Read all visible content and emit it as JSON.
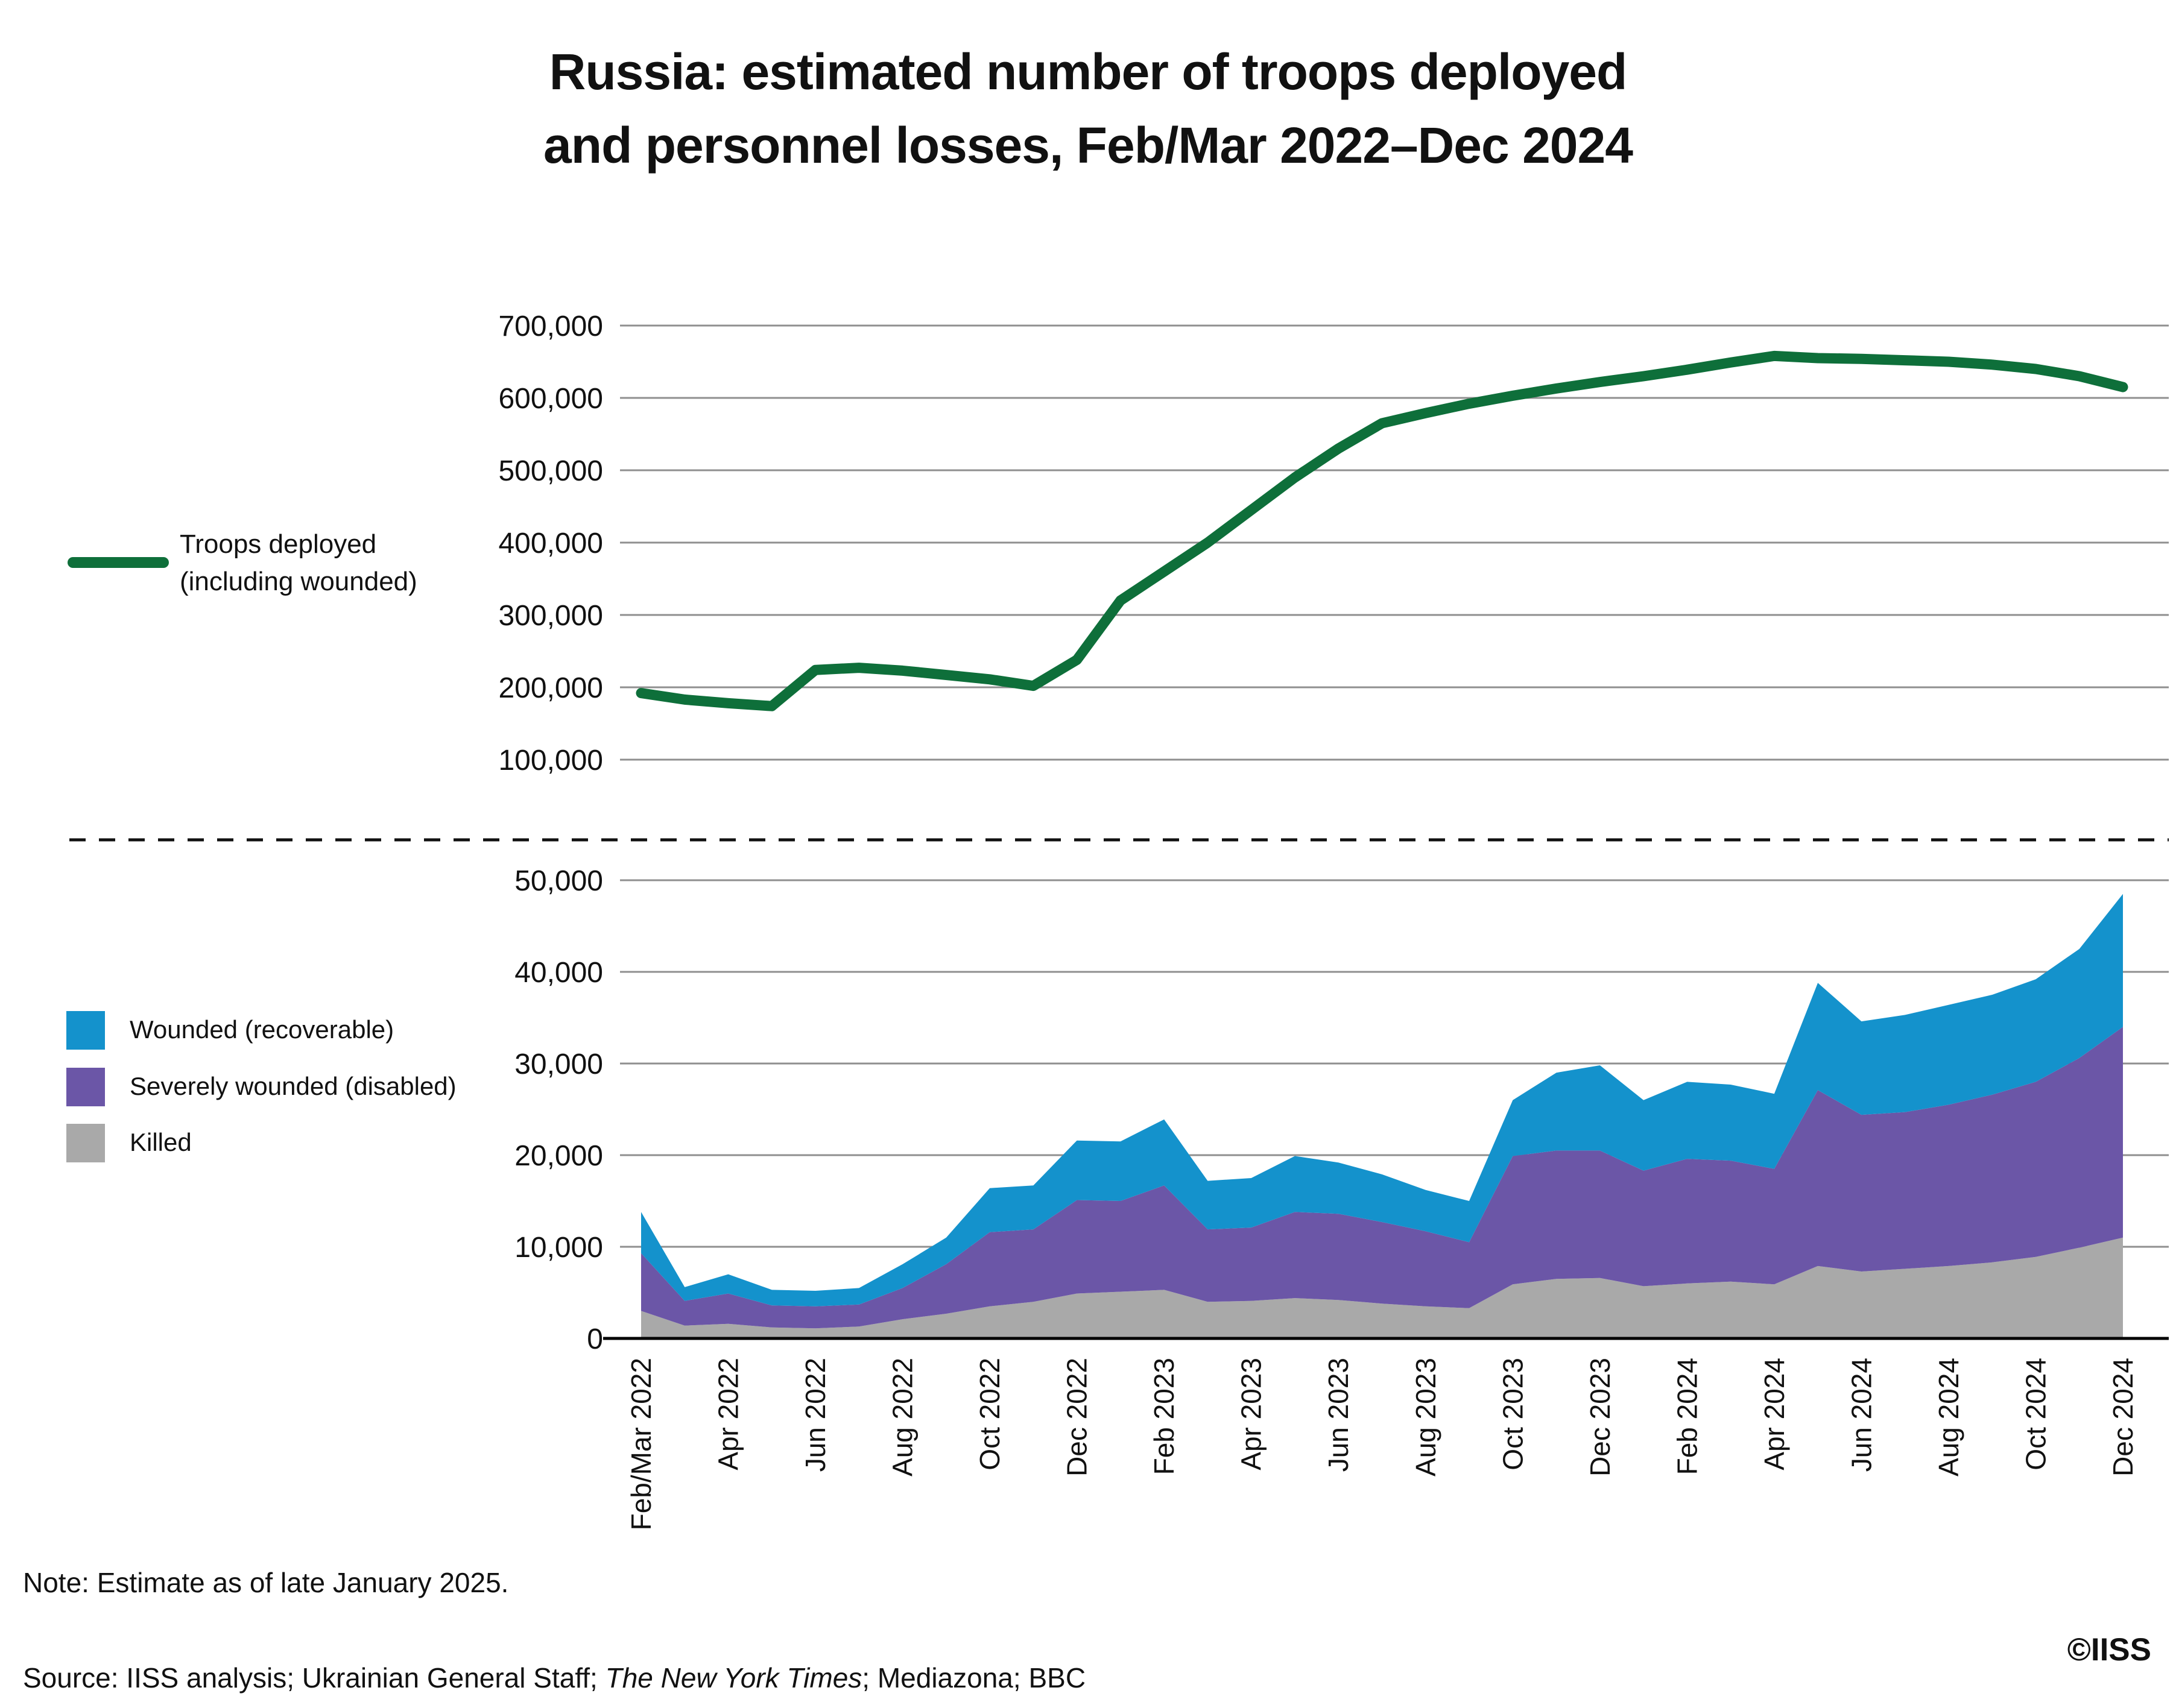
{
  "title": {
    "line1": "Russia: estimated number of troops deployed",
    "line2": "and personnel losses, Feb/Mar 2022–Dec 2024"
  },
  "legend_top": {
    "line1": "Troops deployed",
    "line2": "(including wounded)"
  },
  "legend_bottom": [
    {
      "label": "Wounded (recoverable)",
      "color": "#1492CC"
    },
    {
      "label": "Severely wounded (disabled)",
      "color": "#6B56A7"
    },
    {
      "label": "Killed",
      "color": "#A9A9A9"
    }
  ],
  "note": "Note: Estimate as of late January 2025.",
  "source": {
    "prefix": "Source: IISS analysis; Ukrainian General Staff; ",
    "italic": "The New York Times",
    "suffix": "; Mediazona; BBC"
  },
  "copyright": "©IISS",
  "colors": {
    "troops_line": "#0E6F3A",
    "wounded_recoverable": "#1492CC",
    "severely_wounded": "#6B56A7",
    "killed": "#A9A9A9",
    "gridline": "#8F8F8F",
    "axis_line": "#000000",
    "divider": "#111111",
    "text": "#111111"
  },
  "chart_data": [
    {
      "type": "line",
      "title": "Troops deployed (including wounded)",
      "x": [
        "Feb/Mar 2022",
        "Mar 2022",
        "Apr 2022",
        "May 2022",
        "Jun 2022",
        "Jul 2022",
        "Aug 2022",
        "Sep 2022",
        "Oct 2022",
        "Nov 2022",
        "Dec 2022",
        "Jan 2023",
        "Feb 2023",
        "Mar 2023",
        "Apr 2023",
        "May 2023",
        "Jun 2023",
        "Jul 2023",
        "Aug 2023",
        "Sep 2023",
        "Oct 2023",
        "Nov 2023",
        "Dec 2023",
        "Jan 2024",
        "Feb 2024",
        "Mar 2024",
        "Apr 2024",
        "May 2024",
        "Jun 2024",
        "Jul 2024",
        "Aug 2024",
        "Sep 2024",
        "Oct 2024",
        "Nov 2024",
        "Dec 2024"
      ],
      "label_every": 2,
      "ylim": [
        100000,
        700000
      ],
      "yticks": [
        700000,
        600000,
        500000,
        400000,
        300000,
        200000,
        100000
      ],
      "grid": true,
      "legend_position": "left",
      "series": [
        {
          "name": "Troops deployed (including wounded)",
          "color": "#0E6F3A",
          "values": [
            192000,
            183000,
            178000,
            174000,
            224000,
            227000,
            223000,
            217000,
            211000,
            202000,
            238000,
            320000,
            360000,
            400000,
            445000,
            490000,
            530000,
            565000,
            579000,
            592000,
            603000,
            613000,
            622000,
            630000,
            639000,
            649000,
            658000,
            655000,
            654000,
            652000,
            650000,
            646000,
            640000,
            630000,
            615000
          ]
        }
      ]
    },
    {
      "type": "area",
      "stacked": true,
      "title": "Personnel losses per month",
      "x": [
        "Feb/Mar 2022",
        "Mar 2022",
        "Apr 2022",
        "May 2022",
        "Jun 2022",
        "Jul 2022",
        "Aug 2022",
        "Sep 2022",
        "Oct 2022",
        "Nov 2022",
        "Dec 2022",
        "Jan 2023",
        "Feb 2023",
        "Mar 2023",
        "Apr 2023",
        "May 2023",
        "Jun 2023",
        "Jul 2023",
        "Aug 2023",
        "Sep 2023",
        "Oct 2023",
        "Nov 2023",
        "Dec 2023",
        "Jan 2024",
        "Feb 2024",
        "Mar 2024",
        "Apr 2024",
        "May 2024",
        "Jun 2024",
        "Jul 2024",
        "Aug 2024",
        "Sep 2024",
        "Oct 2024",
        "Nov 2024",
        "Dec 2024"
      ],
      "label_every": 2,
      "ylim": [
        0,
        50000
      ],
      "yticks": [
        50000,
        40000,
        30000,
        20000,
        10000,
        0
      ],
      "grid": true,
      "legend_position": "left",
      "series": [
        {
          "name": "Killed",
          "color": "#A9A9A9",
          "values": [
            3000,
            1400,
            1600,
            1200,
            1100,
            1300,
            2100,
            2700,
            3500,
            4000,
            4900,
            5100,
            5300,
            4000,
            4100,
            4400,
            4200,
            3800,
            3500,
            3300,
            5900,
            6500,
            6600,
            5700,
            6000,
            6200,
            5900,
            7900,
            7300,
            7600,
            7900,
            8300,
            8900,
            9900,
            11000
          ]
        },
        {
          "name": "Severely wounded (disabled)",
          "color": "#6B56A7",
          "values": [
            6300,
            2700,
            3300,
            2400,
            2400,
            2400,
            3400,
            5400,
            8100,
            7900,
            10200,
            9900,
            11400,
            7900,
            8000,
            9400,
            9400,
            8900,
            8200,
            7200,
            14000,
            14000,
            13900,
            12600,
            13600,
            13200,
            12600,
            19200,
            17100,
            17100,
            17600,
            18300,
            19100,
            20700,
            23000
          ]
        },
        {
          "name": "Wounded (recoverable)",
          "color": "#1492CC",
          "values": [
            4500,
            1500,
            2100,
            1700,
            1700,
            1800,
            2600,
            2900,
            4800,
            4800,
            6500,
            6500,
            7200,
            5300,
            5400,
            6100,
            5600,
            5200,
            4500,
            4500,
            6100,
            8500,
            9300,
            7700,
            8400,
            8300,
            8200,
            11700,
            10200,
            10600,
            10900,
            10900,
            11200,
            11900,
            14500
          ]
        }
      ]
    }
  ]
}
